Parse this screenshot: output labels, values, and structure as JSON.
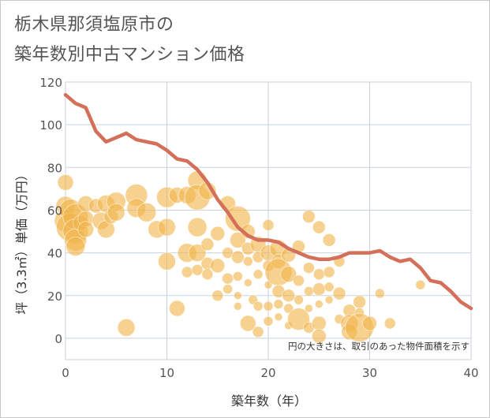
{
  "title_lines": [
    "栃木県那須塩原市の",
    "築年数別中古マンション価格"
  ],
  "chart_data": {
    "type": "scatter",
    "title": "栃木県那須塩原市の築年数別中古マンション価格",
    "xlabel": "築年数（年）",
    "ylabel": "坪（3.3㎡）単価（万円）",
    "xlim": [
      0,
      40
    ],
    "ylim": [
      -10,
      120
    ],
    "x_ticks": [
      0,
      10,
      20,
      30,
      40
    ],
    "y_ticks": [
      0,
      20,
      40,
      60,
      80,
      100,
      120
    ],
    "grid": true,
    "note": "円の大きさは、取引のあった物件面積を示す",
    "bubble_color": "#f0b44c",
    "line_color": "#d4705a",
    "trend_line": {
      "x": [
        0,
        1,
        2,
        3,
        4,
        5,
        6,
        7,
        8,
        9,
        10,
        11,
        12,
        13,
        14,
        15,
        16,
        17,
        18,
        19,
        20,
        21,
        22,
        23,
        24,
        25,
        26,
        27,
        28,
        29,
        30,
        31,
        32,
        33,
        34,
        35,
        36,
        37,
        38,
        39,
        40
      ],
      "y": [
        114,
        110,
        108,
        97,
        92,
        94,
        96,
        93,
        92,
        91,
        88,
        84,
        83,
        79,
        73,
        65,
        59,
        52,
        48,
        46,
        46,
        45,
        42,
        40,
        38,
        37,
        37,
        38,
        40,
        40,
        40,
        41,
        38,
        36,
        37,
        33,
        27,
        26,
        22,
        17,
        14
      ]
    },
    "points": [
      {
        "x": 0,
        "y": 73,
        "s": 10
      },
      {
        "x": 0,
        "y": 62,
        "s": 12
      },
      {
        "x": 0,
        "y": 55,
        "s": 14
      },
      {
        "x": 0.5,
        "y": 60,
        "s": 14
      },
      {
        "x": 0.5,
        "y": 52,
        "s": 18
      },
      {
        "x": 1,
        "y": 57,
        "s": 16
      },
      {
        "x": 1,
        "y": 50,
        "s": 16
      },
      {
        "x": 1,
        "y": 46,
        "s": 14
      },
      {
        "x": 1,
        "y": 43,
        "s": 12
      },
      {
        "x": 1.5,
        "y": 54,
        "s": 10
      },
      {
        "x": 2,
        "y": 63,
        "s": 10
      },
      {
        "x": 2,
        "y": 56,
        "s": 10
      },
      {
        "x": 2,
        "y": 51,
        "s": 10
      },
      {
        "x": 3,
        "y": 62,
        "s": 9
      },
      {
        "x": 3.5,
        "y": 55,
        "s": 11
      },
      {
        "x": 4,
        "y": 63,
        "s": 11
      },
      {
        "x": 4,
        "y": 51,
        "s": 11
      },
      {
        "x": 4.5,
        "y": 57,
        "s": 9
      },
      {
        "x": 5,
        "y": 64,
        "s": 12
      },
      {
        "x": 5,
        "y": 59,
        "s": 11
      },
      {
        "x": 6,
        "y": 5,
        "s": 11
      },
      {
        "x": 7,
        "y": 67,
        "s": 14
      },
      {
        "x": 7,
        "y": 61,
        "s": 12
      },
      {
        "x": 8,
        "y": 59,
        "s": 12
      },
      {
        "x": 9,
        "y": 51,
        "s": 11
      },
      {
        "x": 10,
        "y": 66,
        "s": 13
      },
      {
        "x": 10,
        "y": 52,
        "s": 11
      },
      {
        "x": 10,
        "y": 36,
        "s": 11
      },
      {
        "x": 11,
        "y": 67,
        "s": 10
      },
      {
        "x": 11,
        "y": 14,
        "s": 10
      },
      {
        "x": 12,
        "y": 67,
        "s": 11
      },
      {
        "x": 12,
        "y": 40,
        "s": 12
      },
      {
        "x": 12,
        "y": 31,
        "s": 7
      },
      {
        "x": 13,
        "y": 74,
        "s": 12
      },
      {
        "x": 13,
        "y": 66,
        "s": 16
      },
      {
        "x": 13,
        "y": 52,
        "s": 12
      },
      {
        "x": 13,
        "y": 40,
        "s": 11
      },
      {
        "x": 13,
        "y": 32,
        "s": 7
      },
      {
        "x": 14,
        "y": 69,
        "s": 11
      },
      {
        "x": 14,
        "y": 44,
        "s": 8
      },
      {
        "x": 14,
        "y": 35,
        "s": 8
      },
      {
        "x": 14,
        "y": 30,
        "s": 7
      },
      {
        "x": 15,
        "y": 49,
        "s": 9
      },
      {
        "x": 15,
        "y": 34,
        "s": 9
      },
      {
        "x": 15,
        "y": 20,
        "s": 7
      },
      {
        "x": 16,
        "y": 63,
        "s": 10
      },
      {
        "x": 16,
        "y": 40,
        "s": 7
      },
      {
        "x": 16,
        "y": 28,
        "s": 7
      },
      {
        "x": 16,
        "y": 23,
        "s": 6
      },
      {
        "x": 17,
        "y": 56,
        "s": 16
      },
      {
        "x": 17,
        "y": 46,
        "s": 10
      },
      {
        "x": 17,
        "y": 38,
        "s": 8
      },
      {
        "x": 17,
        "y": 29,
        "s": 6
      },
      {
        "x": 17,
        "y": 20,
        "s": 5
      },
      {
        "x": 17,
        "y": 15,
        "s": 5
      },
      {
        "x": 18,
        "y": 50,
        "s": 9
      },
      {
        "x": 18,
        "y": 42,
        "s": 8
      },
      {
        "x": 18,
        "y": 36,
        "s": 6
      },
      {
        "x": 18,
        "y": 26,
        "s": 5
      },
      {
        "x": 18,
        "y": 7,
        "s": 10
      },
      {
        "x": 18.5,
        "y": 18,
        "s": 6
      },
      {
        "x": 19,
        "y": 44,
        "s": 10
      },
      {
        "x": 19,
        "y": 38,
        "s": 7
      },
      {
        "x": 19,
        "y": 30,
        "s": 6
      },
      {
        "x": 19,
        "y": 15,
        "s": 6
      },
      {
        "x": 19,
        "y": 3,
        "s": 7
      },
      {
        "x": 20,
        "y": 53,
        "s": 7
      },
      {
        "x": 20,
        "y": 40,
        "s": 10
      },
      {
        "x": 20,
        "y": 34,
        "s": 7
      },
      {
        "x": 20,
        "y": 25,
        "s": 5
      },
      {
        "x": 20,
        "y": 15,
        "s": 6
      },
      {
        "x": 20,
        "y": 8,
        "s": 6
      },
      {
        "x": 21,
        "y": 42,
        "s": 11
      },
      {
        "x": 21,
        "y": 36,
        "s": 9
      },
      {
        "x": 21,
        "y": 31,
        "s": 17
      },
      {
        "x": 21,
        "y": 22,
        "s": 8
      },
      {
        "x": 21,
        "y": 16,
        "s": 6
      },
      {
        "x": 21,
        "y": 10,
        "s": 5
      },
      {
        "x": 22,
        "y": 39,
        "s": 9
      },
      {
        "x": 22,
        "y": 30,
        "s": 10
      },
      {
        "x": 22,
        "y": 20,
        "s": 8
      },
      {
        "x": 22,
        "y": 14,
        "s": 6
      },
      {
        "x": 22,
        "y": 6,
        "s": 5
      },
      {
        "x": 23,
        "y": 43,
        "s": 8
      },
      {
        "x": 23,
        "y": 27,
        "s": 7
      },
      {
        "x": 23,
        "y": 18,
        "s": 6
      },
      {
        "x": 23,
        "y": 9,
        "s": 14
      },
      {
        "x": 24,
        "y": 57,
        "s": 8
      },
      {
        "x": 24,
        "y": 33,
        "s": 7
      },
      {
        "x": 24,
        "y": 22,
        "s": 6
      },
      {
        "x": 24,
        "y": 14,
        "s": 5
      },
      {
        "x": 24,
        "y": 5,
        "s": 7
      },
      {
        "x": 25,
        "y": 52,
        "s": 8
      },
      {
        "x": 25,
        "y": 30,
        "s": 7
      },
      {
        "x": 25,
        "y": 23,
        "s": 8
      },
      {
        "x": 25,
        "y": 16,
        "s": 5
      },
      {
        "x": 25,
        "y": 7,
        "s": 9
      },
      {
        "x": 25,
        "y": 1,
        "s": 9
      },
      {
        "x": 26,
        "y": 46,
        "s": 8
      },
      {
        "x": 26,
        "y": 31,
        "s": 7
      },
      {
        "x": 26,
        "y": 24,
        "s": 6
      },
      {
        "x": 26,
        "y": 18,
        "s": 5
      },
      {
        "x": 27,
        "y": 36,
        "s": 7
      },
      {
        "x": 27,
        "y": 21,
        "s": 8
      },
      {
        "x": 27,
        "y": 9,
        "s": 6
      },
      {
        "x": 28,
        "y": 13,
        "s": 8
      },
      {
        "x": 28,
        "y": 7,
        "s": 11
      },
      {
        "x": 28,
        "y": 3,
        "s": 10
      },
      {
        "x": 29,
        "y": 17,
        "s": 8
      },
      {
        "x": 29,
        "y": 12,
        "s": 6
      },
      {
        "x": 29,
        "y": 5,
        "s": 18
      },
      {
        "x": 30,
        "y": 7,
        "s": 9
      },
      {
        "x": 31,
        "y": 21,
        "s": 6
      },
      {
        "x": 32,
        "y": 7,
        "s": 7
      },
      {
        "x": 35,
        "y": 25,
        "s": 6
      }
    ]
  }
}
